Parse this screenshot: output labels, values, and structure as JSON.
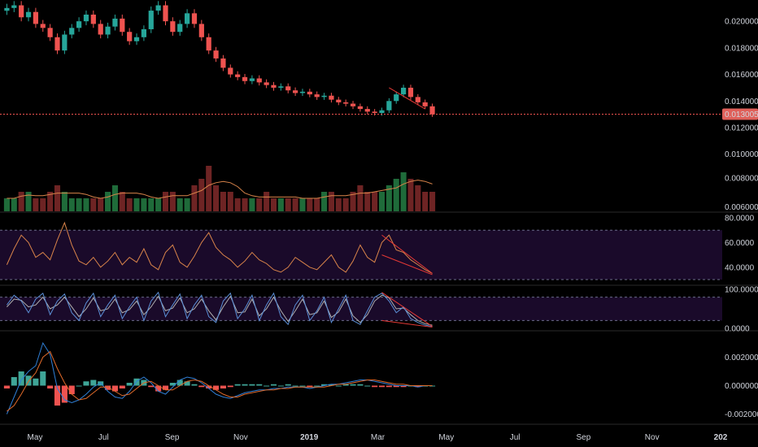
{
  "chart_data": {
    "type": "candlestick-with-indicators",
    "colors": {
      "background": "#000000",
      "up": "#26a69a",
      "down": "#ef5350",
      "vol_up": "#1f6b3a",
      "vol_down": "#6e2424",
      "vol_ma": "#d9844a",
      "rsi": "#d9844a",
      "band": "#1a0a2a",
      "stoch_k": "#5b8fd6",
      "stoch_d": "#b0b0b0",
      "macd": "#2f7fd6",
      "signal": "#e06a2a",
      "hist_pos": "#3fa597",
      "hist_neg": "#ef5350",
      "trend": "#e53935",
      "price_line": "#ef5350",
      "last_badge": "#e0605a"
    },
    "price_panel": {
      "y_ticks": [
        "0.020000",
        "0.018000",
        "0.016000",
        "0.014000",
        "0.012000",
        "0.010000",
        "0.008000",
        "0.006000"
      ],
      "last_price": "0.013005",
      "ylim": [
        0.0057,
        0.0216
      ],
      "close": [
        0.021,
        0.0212,
        0.0203,
        0.0207,
        0.0198,
        0.0195,
        0.0188,
        0.0178,
        0.019,
        0.0195,
        0.02,
        0.0205,
        0.0198,
        0.019,
        0.0196,
        0.0202,
        0.0192,
        0.0185,
        0.0188,
        0.0194,
        0.0208,
        0.0212,
        0.02,
        0.0192,
        0.0198,
        0.0206,
        0.0198,
        0.0188,
        0.0178,
        0.0172,
        0.0165,
        0.016,
        0.0158,
        0.0155,
        0.0157,
        0.0154,
        0.0152,
        0.015,
        0.0151,
        0.0148,
        0.0146,
        0.0147,
        0.0145,
        0.0143,
        0.0144,
        0.0141,
        0.0139,
        0.0138,
        0.0136,
        0.0134,
        0.0132,
        0.0131,
        0.0133,
        0.014,
        0.0145,
        0.015,
        0.0143,
        0.0139,
        0.0136,
        0.013
      ]
    },
    "volume": [
      2,
      2,
      3,
      3,
      2,
      2,
      3,
      4,
      3,
      2,
      2,
      2,
      2,
      2,
      3,
      4,
      3,
      2,
      2,
      2,
      2,
      2,
      3,
      3,
      2,
      2,
      4,
      5,
      7,
      4,
      3,
      3,
      2,
      2,
      2,
      2,
      3,
      2,
      2,
      2,
      2,
      2,
      2,
      2,
      3,
      3,
      2,
      2,
      3,
      4,
      3,
      3,
      3,
      4,
      5,
      6,
      5,
      4,
      3,
      3
    ],
    "rsi": {
      "y_ticks": [
        "80.0000",
        "60.0000",
        "40.0000"
      ],
      "ylim": [
        30,
        80
      ],
      "upper": 70,
      "lower": 30,
      "values": [
        42,
        55,
        66,
        60,
        48,
        52,
        46,
        62,
        76,
        58,
        45,
        42,
        48,
        40,
        45,
        52,
        42,
        48,
        44,
        55,
        42,
        38,
        52,
        58,
        44,
        40,
        49,
        60,
        68,
        56,
        50,
        46,
        40,
        45,
        52,
        46,
        43,
        38,
        36,
        40,
        48,
        44,
        40,
        38,
        44,
        50,
        40,
        36,
        45,
        58,
        48,
        44,
        60,
        66,
        54,
        52,
        46,
        42,
        38,
        35
      ]
    },
    "stoch": {
      "y_ticks": [
        "100.0000",
        "0.0000"
      ],
      "ylim": [
        0,
        100
      ],
      "upper": 80,
      "lower": 20,
      "k": [
        60,
        85,
        70,
        40,
        75,
        90,
        35,
        70,
        88,
        40,
        20,
        65,
        90,
        30,
        60,
        85,
        25,
        55,
        80,
        20,
        70,
        92,
        30,
        60,
        88,
        25,
        60,
        85,
        30,
        15,
        70,
        90,
        25,
        50,
        85,
        20,
        60,
        90,
        30,
        10,
        60,
        85,
        20,
        45,
        80,
        15,
        50,
        85,
        20,
        10,
        45,
        80,
        90,
        70,
        40,
        55,
        25,
        15,
        8,
        5
      ],
      "d": [
        55,
        75,
        72,
        55,
        60,
        80,
        50,
        60,
        80,
        55,
        30,
        50,
        78,
        45,
        50,
        75,
        40,
        48,
        70,
        35,
        55,
        82,
        45,
        52,
        78,
        40,
        50,
        75,
        45,
        22,
        55,
        82,
        40,
        42,
        75,
        32,
        50,
        80,
        45,
        18,
        45,
        75,
        35,
        40,
        70,
        28,
        42,
        75,
        32,
        15,
        35,
        70,
        85,
        78,
        50,
        52,
        35,
        20,
        12,
        8
      ]
    },
    "macd": {
      "y_ticks": [
        "0.002000",
        "0.000000",
        "-0.002000"
      ],
      "ylim": [
        -0.0026,
        0.0038
      ],
      "macd": [
        -0.002,
        -0.0008,
        0.0004,
        0.001,
        0.0014,
        0.003,
        0.0022,
        -0.0002,
        -0.001,
        -0.0012,
        -0.001,
        -0.0006,
        -0.0001,
        0.0002,
        -0.0004,
        -0.0008,
        -0.0009,
        -0.0004,
        0.0003,
        0.0006,
        0.0002,
        -0.0004,
        -0.0006,
        -0.0001,
        0.0004,
        0.0006,
        0.0005,
        0.0002,
        -0.0002,
        -0.0006,
        -0.0008,
        -0.0009,
        -0.0007,
        -0.0005,
        -0.0004,
        -0.0003,
        -0.0003,
        -0.0002,
        -0.0002,
        -0.0001,
        -0.0001,
        -0.0001,
        -0.0002,
        -0.0001,
        0.0,
        0.0001,
        0.0001,
        0.0002,
        0.0003,
        0.0004,
        0.0004,
        0.0003,
        0.0002,
        0.0001,
        0.0,
        0.0,
        0.0,
        -0.0001,
        0.0,
        0.0
      ],
      "signal": [
        -0.0018,
        -0.0014,
        -0.0006,
        0.0003,
        0.0009,
        0.002,
        0.0024,
        0.0012,
        0.0002,
        -0.0006,
        -0.001,
        -0.0009,
        -0.0005,
        -0.0001,
        -0.0001,
        -0.0004,
        -0.0007,
        -0.0006,
        -0.0002,
        0.0002,
        0.0003,
        0.0,
        -0.0003,
        -0.0003,
        0.0,
        0.0003,
        0.0004,
        0.0003,
        0.0,
        -0.0003,
        -0.0006,
        -0.0008,
        -0.0008,
        -0.0006,
        -0.0005,
        -0.0004,
        -0.0003,
        -0.0003,
        -0.0002,
        -0.0002,
        -0.0001,
        -0.0001,
        -0.0001,
        -0.0001,
        -0.0001,
        0.0,
        0.0001,
        0.0001,
        0.0002,
        0.0003,
        0.0004,
        0.0004,
        0.0003,
        0.0002,
        0.0001,
        0.0001,
        0.0,
        0.0,
        0.0,
        0.0
      ]
    },
    "trendlines": {
      "price": [
        [
          53,
          0.015
        ],
        [
          58,
          0.0134
        ]
      ],
      "rsi": [
        [
          52,
          66
        ],
        [
          59,
          35
        ],
        [
          52,
          50
        ],
        [
          59,
          34
        ]
      ],
      "stoch": [
        [
          52,
          92
        ],
        [
          59,
          5
        ],
        [
          52,
          20
        ],
        [
          59,
          3
        ]
      ]
    },
    "time_axis": [
      {
        "label": "May",
        "bold": false
      },
      {
        "label": "Jul",
        "bold": false
      },
      {
        "label": "Sep",
        "bold": false
      },
      {
        "label": "Nov",
        "bold": false
      },
      {
        "label": "2019",
        "bold": true
      },
      {
        "label": "Mar",
        "bold": false
      },
      {
        "label": "May",
        "bold": false
      },
      {
        "label": "Jul",
        "bold": false
      },
      {
        "label": "Sep",
        "bold": false
      },
      {
        "label": "Nov",
        "bold": false
      },
      {
        "label": "202",
        "bold": true
      }
    ]
  }
}
